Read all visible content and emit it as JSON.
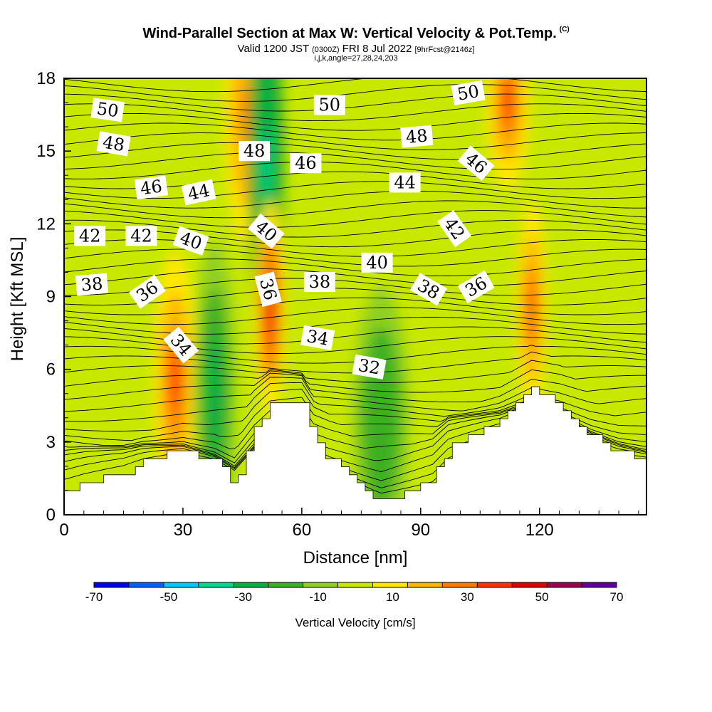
{
  "title": {
    "main": "Wind-Parallel Section at Max W: Vertical Velocity & Pot.Temp.",
    "mark": "(C)",
    "valid_prefix": "Valid 1200 JST",
    "valid_utc": "(0300Z)",
    "valid_date": "FRI 8 Jul 2022",
    "forecast": "[9hrFcst@2146z]",
    "params": "i,j,k,angle=27,28,24,203"
  },
  "chart_data": {
    "type": "cross-section",
    "xlabel": "Distance [nm]",
    "ylabel": "Height [Kft MSL]",
    "xlim": [
      0,
      147
    ],
    "ylim": [
      0,
      18
    ],
    "xticks": [
      "0",
      "30",
      "60",
      "90",
      "120"
    ],
    "yticks": [
      "0",
      "3",
      "6",
      "9",
      "12",
      "15",
      "18"
    ],
    "colorbar": {
      "label": "Vertical Velocity [cm/s]",
      "ticks": [
        "-70",
        "-50",
        "-30",
        "-10",
        "10",
        "30",
        "50",
        "70"
      ],
      "bounds": [
        -70,
        -60,
        -50,
        -40,
        -30,
        -20,
        -10,
        0,
        10,
        20,
        30,
        40,
        50,
        60,
        70
      ],
      "colors": [
        "#0000ee",
        "#0060ff",
        "#00c8ff",
        "#00d890",
        "#00b040",
        "#3cb020",
        "#90d020",
        "#c8e800",
        "#ffe800",
        "#ffb400",
        "#ff7800",
        "#ff3000",
        "#e00000",
        "#a00050",
        "#6000a0"
      ]
    },
    "terrain": [
      [
        0,
        1
      ],
      [
        5,
        1.3
      ],
      [
        15,
        1.7
      ],
      [
        20,
        2.2
      ],
      [
        30,
        2.7
      ],
      [
        38,
        2.2
      ],
      [
        43,
        1.3
      ],
      [
        48,
        3.5
      ],
      [
        52,
        4.7
      ],
      [
        60,
        4.7
      ],
      [
        63,
        3
      ],
      [
        67,
        2.3
      ],
      [
        72,
        1.6
      ],
      [
        80,
        0.5
      ],
      [
        93,
        1.5
      ],
      [
        97,
        2.8
      ],
      [
        110,
        3.9
      ],
      [
        118,
        5.2
      ],
      [
        125,
        4.5
      ],
      [
        133,
        3.3
      ],
      [
        140,
        2.6
      ],
      [
        147,
        2.3
      ]
    ],
    "vertical_velocity_features": [
      {
        "x": 28,
        "y": 5.5,
        "value": 40,
        "rx": 3,
        "ry": 3
      },
      {
        "x": 38,
        "y": 5.0,
        "value": -28,
        "rx": 3,
        "ry": 3.5
      },
      {
        "x": 46,
        "y": 16.5,
        "value": 35,
        "rx": 3,
        "ry": 3
      },
      {
        "x": 51,
        "y": 14.5,
        "value": -35,
        "rx": 2.5,
        "ry": 4
      },
      {
        "x": 52,
        "y": 8.5,
        "value": 55,
        "rx": 2,
        "ry": 2.5
      },
      {
        "x": 80,
        "y": 4.0,
        "value": -18,
        "rx": 4,
        "ry": 3
      },
      {
        "x": 112,
        "y": 17.0,
        "value": 40,
        "rx": 3,
        "ry": 2
      },
      {
        "x": 118,
        "y": 8.5,
        "value": 45,
        "rx": 2,
        "ry": 2.5
      }
    ],
    "contour_labels": [
      {
        "text": "50",
        "x": 11,
        "y": 16.7,
        "rot": 8
      },
      {
        "text": "48",
        "x": 12.5,
        "y": 15.3,
        "rot": 10
      },
      {
        "text": "46",
        "x": 22,
        "y": 13.5,
        "rot": -8
      },
      {
        "text": "44",
        "x": 34,
        "y": 13.3,
        "rot": -12
      },
      {
        "text": "42",
        "x": 6.5,
        "y": 11.5,
        "rot": 0
      },
      {
        "text": "42",
        "x": 19.5,
        "y": 11.5,
        "rot": 0
      },
      {
        "text": "40",
        "x": 32,
        "y": 11.3,
        "rot": 20
      },
      {
        "text": "38",
        "x": 7,
        "y": 9.5,
        "rot": -5
      },
      {
        "text": "36",
        "x": 21,
        "y": 9.2,
        "rot": -35
      },
      {
        "text": "34",
        "x": 29.5,
        "y": 7.0,
        "rot": 50
      },
      {
        "text": "48",
        "x": 48,
        "y": 15.0,
        "rot": 0
      },
      {
        "text": "46",
        "x": 61,
        "y": 14.5,
        "rot": 0
      },
      {
        "text": "50",
        "x": 67,
        "y": 16.9,
        "rot": 0
      },
      {
        "text": "40",
        "x": 51,
        "y": 11.7,
        "rot": 40
      },
      {
        "text": "36",
        "x": 51.5,
        "y": 9.3,
        "rot": 75
      },
      {
        "text": "38",
        "x": 64.5,
        "y": 9.6,
        "rot": 0
      },
      {
        "text": "34",
        "x": 64,
        "y": 7.3,
        "rot": 10
      },
      {
        "text": "32",
        "x": 77,
        "y": 6.1,
        "rot": 10
      },
      {
        "text": "40",
        "x": 79,
        "y": 10.4,
        "rot": 0
      },
      {
        "text": "44",
        "x": 86,
        "y": 13.7,
        "rot": 0
      },
      {
        "text": "48",
        "x": 89,
        "y": 15.6,
        "rot": -5
      },
      {
        "text": "50",
        "x": 102,
        "y": 17.4,
        "rot": -10
      },
      {
        "text": "46",
        "x": 104,
        "y": 14.5,
        "rot": 40
      },
      {
        "text": "42",
        "x": 98.5,
        "y": 11.8,
        "rot": 55
      },
      {
        "text": "38",
        "x": 92,
        "y": 9.3,
        "rot": 30
      },
      {
        "text": "36",
        "x": 104,
        "y": 9.4,
        "rot": -30
      }
    ]
  }
}
